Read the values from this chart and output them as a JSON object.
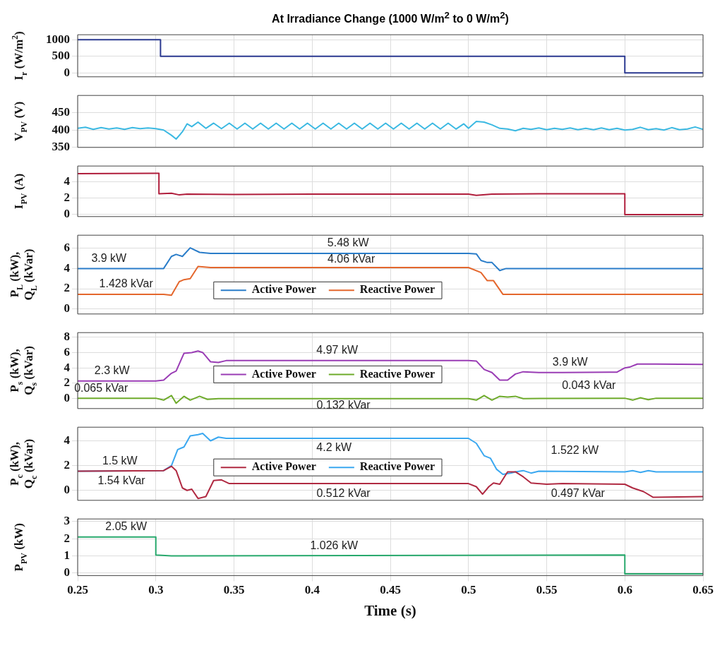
{
  "chart_data": [
    {
      "type": "line",
      "title": "At Irradiance Change (1000 W/m$^{2}$ to 0 W/m$^{2}$)",
      "ylabel": "I$_{r}$ (W/m$^{2}$)",
      "xlim": [
        0.25,
        0.65
      ],
      "xticks": [
        0.25,
        0.3,
        0.35,
        0.4,
        0.45,
        0.5,
        0.55,
        0.6,
        0.65
      ],
      "ylim": [
        -120,
        1150
      ],
      "yticks": [
        0,
        500,
        1000
      ],
      "grid": true,
      "tick_labels": "y",
      "series": [
        {
          "color": "#2b3990",
          "x": [
            0.25,
            0.303,
            0.303,
            0.6,
            0.6,
            0.65
          ],
          "values": [
            1000,
            1000,
            500,
            500,
            0,
            0
          ]
        }
      ]
    },
    {
      "type": "line",
      "ylabel": "V$_{PV}$ (V)",
      "xlim": [
        0.25,
        0.65
      ],
      "xticks": [
        0.25,
        0.3,
        0.35,
        0.4,
        0.45,
        0.5,
        0.55,
        0.6,
        0.65
      ],
      "ylim": [
        350,
        500
      ],
      "yticks": [
        350,
        400,
        450
      ],
      "grid": true,
      "tick_labels": "y",
      "series": [
        {
          "color": "#3cb9e2",
          "x": [
            0.25,
            0.255,
            0.26,
            0.265,
            0.27,
            0.275,
            0.28,
            0.285,
            0.29,
            0.295,
            0.3,
            0.305,
            0.31,
            0.313,
            0.317,
            0.32,
            0.323,
            0.327,
            0.332,
            0.337,
            0.342,
            0.347,
            0.352,
            0.357,
            0.362,
            0.367,
            0.372,
            0.377,
            0.382,
            0.387,
            0.392,
            0.397,
            0.402,
            0.407,
            0.412,
            0.417,
            0.422,
            0.427,
            0.432,
            0.437,
            0.442,
            0.447,
            0.452,
            0.457,
            0.462,
            0.467,
            0.472,
            0.477,
            0.482,
            0.487,
            0.492,
            0.497,
            0.5,
            0.505,
            0.51,
            0.515,
            0.52,
            0.525,
            0.53,
            0.535,
            0.54,
            0.545,
            0.55,
            0.555,
            0.56,
            0.565,
            0.57,
            0.575,
            0.58,
            0.585,
            0.59,
            0.595,
            0.6,
            0.605,
            0.61,
            0.615,
            0.62,
            0.625,
            0.63,
            0.635,
            0.64,
            0.645,
            0.65
          ],
          "values": [
            405,
            408,
            402,
            407,
            403,
            406,
            402,
            407,
            404,
            406,
            404,
            400,
            385,
            374,
            395,
            418,
            410,
            423,
            405,
            420,
            404,
            420,
            403,
            420,
            403,
            420,
            403,
            420,
            403,
            420,
            403,
            420,
            403,
            420,
            403,
            420,
            403,
            420,
            403,
            420,
            403,
            420,
            403,
            420,
            403,
            420,
            403,
            420,
            403,
            420,
            403,
            418,
            405,
            425,
            423,
            415,
            405,
            403,
            398,
            405,
            402,
            406,
            401,
            405,
            402,
            406,
            401,
            405,
            401,
            406,
            401,
            405,
            400,
            402,
            408,
            401,
            404,
            400,
            407,
            401,
            403,
            409,
            402
          ]
        }
      ]
    },
    {
      "type": "line",
      "ylabel": "I$_{PV}$ (A)",
      "xlim": [
        0.25,
        0.65
      ],
      "xticks": [
        0.25,
        0.3,
        0.35,
        0.4,
        0.45,
        0.5,
        0.55,
        0.6,
        0.65
      ],
      "ylim": [
        -0.3,
        6
      ],
      "yticks": [
        0,
        2,
        4
      ],
      "grid": true,
      "tick_labels": "y",
      "series": [
        {
          "color": "#b01e3c",
          "x": [
            0.25,
            0.3,
            0.302,
            0.302,
            0.31,
            0.315,
            0.32,
            0.35,
            0.4,
            0.45,
            0.5,
            0.505,
            0.515,
            0.55,
            0.6,
            0.6,
            0.65
          ],
          "values": [
            5.05,
            5.1,
            5.1,
            2.55,
            2.6,
            2.4,
            2.5,
            2.45,
            2.5,
            2.5,
            2.5,
            2.35,
            2.5,
            2.55,
            2.55,
            -0.05,
            -0.05
          ]
        }
      ]
    },
    {
      "type": "line",
      "ylabel": "P$_{L}$ (kW), Q$_{L}$ (kVar)",
      "xlim": [
        0.25,
        0.65
      ],
      "xticks": [
        0.25,
        0.3,
        0.35,
        0.4,
        0.45,
        0.5,
        0.55,
        0.6,
        0.65
      ],
      "ylim": [
        -0.5,
        7.3
      ],
      "yticks": [
        0,
        2,
        4,
        6
      ],
      "grid": true,
      "tick_labels": "y",
      "legend": "bottom",
      "series": [
        {
          "name": "Active Power",
          "color": "#2a7dc9",
          "x": [
            0.25,
            0.305,
            0.31,
            0.313,
            0.317,
            0.322,
            0.328,
            0.335,
            0.5,
            0.505,
            0.508,
            0.512,
            0.515,
            0.52,
            0.524,
            0.65
          ],
          "values": [
            4,
            4,
            5.2,
            5.4,
            5.2,
            6.05,
            5.6,
            5.5,
            5.5,
            5.45,
            4.8,
            4.6,
            4.6,
            3.8,
            4,
            4
          ]
        },
        {
          "name": "Reactive Power",
          "color": "#e4672d",
          "x": [
            0.25,
            0.305,
            0.31,
            0.315,
            0.318,
            0.322,
            0.327,
            0.335,
            0.5,
            0.508,
            0.512,
            0.516,
            0.522,
            0.65
          ],
          "values": [
            1.45,
            1.45,
            1.35,
            2.7,
            2.9,
            3,
            4.2,
            4.1,
            4.1,
            3.6,
            2.8,
            2.8,
            1.45,
            1.45
          ]
        }
      ],
      "annotations": [
        {
          "text": "3.9 kW",
          "x": 0.27,
          "y": 4
        },
        {
          "text": "5.48 kW",
          "x": 0.423,
          "y": 5.5
        },
        {
          "text": "4.06 kVar",
          "x": 0.425,
          "y": 4.1
        },
        {
          "text": "1.428 kVar",
          "x": 0.281,
          "y": 1.45
        }
      ]
    },
    {
      "type": "line",
      "ylabel": "P$_{s}$ (kW), Q$_{s}$ (kVar)",
      "xlim": [
        0.25,
        0.65
      ],
      "xticks": [
        0.25,
        0.3,
        0.35,
        0.4,
        0.45,
        0.5,
        0.55,
        0.6,
        0.65
      ],
      "ylim": [
        -1.3,
        8.6
      ],
      "yticks": [
        0,
        2,
        4,
        6,
        8
      ],
      "grid": true,
      "tick_labels": "y",
      "legend": "center",
      "series": [
        {
          "name": "Active Power",
          "color": "#9a3db5",
          "x": [
            0.25,
            0.3,
            0.305,
            0.31,
            0.313,
            0.318,
            0.323,
            0.327,
            0.33,
            0.335,
            0.34,
            0.345,
            0.5,
            0.505,
            0.51,
            0.515,
            0.52,
            0.525,
            0.53,
            0.535,
            0.545,
            0.56,
            0.59,
            0.595,
            0.6,
            0.603,
            0.608,
            0.62,
            0.65
          ],
          "values": [
            2.3,
            2.3,
            2.4,
            3.3,
            3.6,
            5.9,
            6,
            6.2,
            6,
            4.8,
            4.7,
            4.95,
            4.95,
            4.9,
            3.8,
            3.4,
            2.4,
            2.4,
            3.2,
            3.5,
            3.4,
            3.4,
            3.45,
            3.45,
            4,
            4.1,
            4.5,
            4.5,
            4.45
          ]
        },
        {
          "name": "Reactive Power",
          "color": "#6eab2b",
          "x": [
            0.25,
            0.3,
            0.305,
            0.31,
            0.313,
            0.318,
            0.322,
            0.328,
            0.333,
            0.34,
            0.5,
            0.505,
            0.51,
            0.515,
            0.52,
            0.525,
            0.53,
            0.535,
            0.6,
            0.605,
            0.61,
            0.615,
            0.62,
            0.65
          ],
          "values": [
            0.05,
            0.05,
            -0.2,
            0.4,
            -0.6,
            0.3,
            -0.2,
            0.3,
            -0.1,
            0,
            0,
            -0.2,
            0.4,
            -0.2,
            0.3,
            0.2,
            0.3,
            0,
            0.05,
            -0.2,
            0.1,
            -0.15,
            0.05,
            0.05
          ]
        }
      ],
      "annotations": [
        {
          "text": "2.3 kW",
          "x": 0.272,
          "y": 2.3
        },
        {
          "text": "4.97 kW",
          "x": 0.416,
          "y": 4.95
        },
        {
          "text": "3.9 kW",
          "x": 0.565,
          "y": 3.4
        },
        {
          "text": "0.065 kVar",
          "x": 0.265,
          "y": 0.05
        },
        {
          "text": "0.132 kVar",
          "x": 0.42,
          "y": 0
        },
        {
          "text": "0.043 kVar",
          "x": 0.577,
          "y": 0.05
        }
      ]
    },
    {
      "type": "line",
      "ylabel": "P$_{c}$ (kW), Q$_{c}$ (kVar)",
      "xlim": [
        0.25,
        0.65
      ],
      "xticks": [
        0.25,
        0.3,
        0.35,
        0.4,
        0.45,
        0.5,
        0.55,
        0.6,
        0.65
      ],
      "ylim": [
        -0.8,
        5.1
      ],
      "yticks": [
        0,
        2,
        4
      ],
      "grid": true,
      "tick_labels": "y",
      "legend": "center",
      "series": [
        {
          "name": "Active Power",
          "color": "#b02a42",
          "x": [
            0.25,
            0.305,
            0.31,
            0.313,
            0.317,
            0.32,
            0.323,
            0.327,
            0.332,
            0.337,
            0.342,
            0.347,
            0.5,
            0.505,
            0.509,
            0.513,
            0.516,
            0.52,
            0.525,
            0.53,
            0.535,
            0.54,
            0.55,
            0.56,
            0.6,
            0.605,
            0.612,
            0.618,
            0.65
          ],
          "values": [
            1.55,
            1.6,
            1.95,
            1.6,
            0.2,
            0,
            0.1,
            -0.65,
            -0.5,
            0.8,
            0.85,
            0.55,
            0.55,
            0.3,
            -0.3,
            0.3,
            0.6,
            0.5,
            1.5,
            1.5,
            1.1,
            0.6,
            0.5,
            0.55,
            0.5,
            0.2,
            -0.1,
            -0.55,
            -0.5
          ]
        },
        {
          "name": "Reactive Power",
          "color": "#3ba8f0",
          "x": [
            0.25,
            0.305,
            0.31,
            0.314,
            0.318,
            0.322,
            0.327,
            0.33,
            0.335,
            0.34,
            0.345,
            0.5,
            0.505,
            0.51,
            0.514,
            0.518,
            0.522,
            0.527,
            0.53,
            0.535,
            0.54,
            0.545,
            0.6,
            0.605,
            0.61,
            0.615,
            0.62,
            0.65
          ],
          "values": [
            1.55,
            1.6,
            2,
            3.3,
            3.5,
            4.4,
            4.5,
            4.6,
            4,
            4.3,
            4.2,
            4.2,
            3.8,
            2.8,
            2.6,
            1.7,
            1.3,
            1.4,
            1.5,
            1.6,
            1.4,
            1.55,
            1.5,
            1.6,
            1.45,
            1.6,
            1.5,
            1.5
          ]
        }
      ],
      "annotations": [
        {
          "text": "1.5 kW",
          "x": 0.277,
          "y": 1.55
        },
        {
          "text": "4.2 kW",
          "x": 0.414,
          "y": 4.2
        },
        {
          "text": "1.522 kW",
          "x": 0.568,
          "y": 1.5
        },
        {
          "text": "1.54 kVar",
          "x": 0.278,
          "y": 1.55
        },
        {
          "text": "0.512 kVar",
          "x": 0.42,
          "y": 0.55
        },
        {
          "text": "0.497 kVar",
          "x": 0.57,
          "y": 0.5
        }
      ]
    },
    {
      "type": "line",
      "ylabel": "P$_{PV}$ (kW)",
      "xlabel": "Time (s)",
      "xlim": [
        0.25,
        0.65
      ],
      "xticks": [
        0.25,
        0.3,
        0.35,
        0.4,
        0.45,
        0.5,
        0.55,
        0.6,
        0.65
      ],
      "ylim": [
        -0.15,
        3.15
      ],
      "yticks": [
        0,
        1,
        2,
        3
      ],
      "grid": true,
      "series": [
        {
          "color": "#28a96d",
          "x": [
            0.25,
            0.3,
            0.3,
            0.31,
            0.6,
            0.6,
            0.65
          ],
          "values": [
            2.1,
            2.1,
            1.05,
            1,
            1.05,
            -0.05,
            -0.05
          ]
        }
      ],
      "annotations": [
        {
          "text": "2.05 kW",
          "x": 0.281,
          "y": 2.1
        },
        {
          "text": "1.026 kW",
          "x": 0.414,
          "y": 1
        }
      ]
    }
  ]
}
